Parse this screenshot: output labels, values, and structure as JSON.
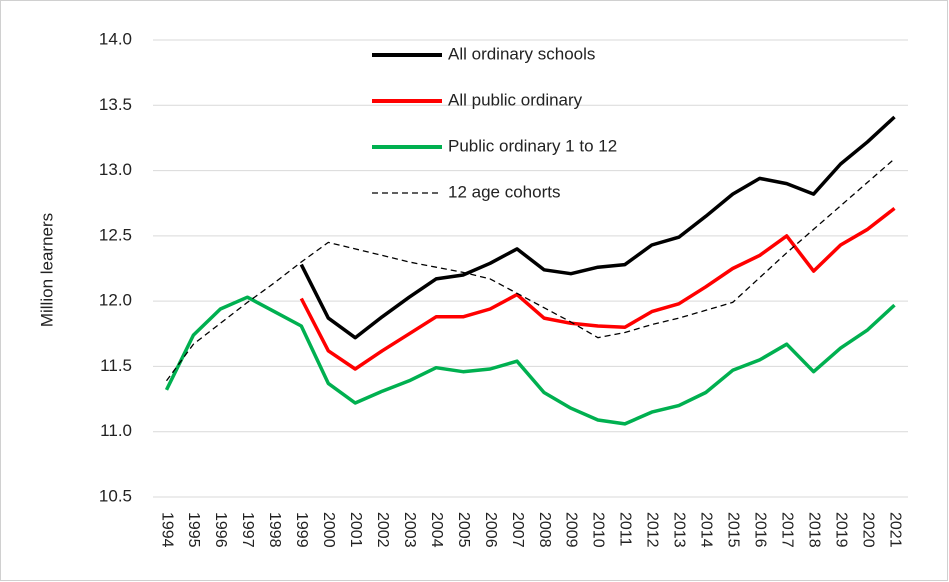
{
  "chart_data": {
    "type": "line",
    "y_label": "Million learners",
    "categories": [
      "1994",
      "1995",
      "1996",
      "1997",
      "1998",
      "1999",
      "2000",
      "2001",
      "2002",
      "2003",
      "2004",
      "2005",
      "2006",
      "2007",
      "2008",
      "2009",
      "2010",
      "2011",
      "2012",
      "2013",
      "2014",
      "2015",
      "2016",
      "2017",
      "2018",
      "2019",
      "2020",
      "2021"
    ],
    "series": [
      {
        "name": "All ordinary schools",
        "color": "#000000",
        "values": [
          null,
          null,
          null,
          null,
          null,
          12.28,
          11.87,
          11.72,
          11.88,
          12.03,
          12.17,
          12.2,
          12.29,
          12.4,
          12.24,
          12.21,
          12.26,
          12.28,
          12.43,
          12.49,
          12.65,
          12.82,
          12.94,
          12.9,
          12.82,
          13.05,
          13.22,
          13.41
        ]
      },
      {
        "name": "All public ordinary",
        "color": "#ff0000",
        "values": [
          null,
          null,
          null,
          null,
          null,
          12.02,
          11.62,
          11.48,
          11.62,
          11.75,
          11.88,
          11.88,
          11.94,
          12.05,
          11.87,
          11.83,
          11.81,
          11.8,
          11.92,
          11.98,
          12.11,
          12.25,
          12.35,
          12.5,
          12.23,
          12.43,
          12.55,
          12.71
        ]
      },
      {
        "name": "Public ordinary 1 to 12",
        "color": "#00b050",
        "values": [
          11.32,
          11.74,
          11.94,
          12.03,
          11.92,
          11.81,
          11.37,
          11.22,
          11.31,
          11.39,
          11.49,
          11.46,
          11.48,
          11.54,
          11.3,
          11.18,
          11.09,
          11.06,
          11.15,
          11.2,
          11.3,
          11.47,
          11.55,
          11.67,
          11.46,
          11.64,
          11.78,
          11.97
        ]
      },
      {
        "name": "12 age cohorts",
        "color": "#000000",
        "dashed": true,
        "values": [
          11.39,
          11.67,
          11.83,
          11.99,
          12.14,
          12.3,
          12.45,
          12.4,
          12.35,
          12.3,
          12.26,
          12.22,
          12.17,
          12.06,
          11.95,
          11.84,
          11.72,
          11.76,
          11.82,
          11.87,
          11.93,
          11.99,
          12.18,
          12.37,
          12.55,
          12.73,
          12.91,
          13.09
        ]
      }
    ],
    "ylim": [
      10.5,
      14.0
    ],
    "yticks": [
      {
        "value": 10.5,
        "label": "10.5"
      },
      {
        "value": 11,
        "label": "11.0"
      },
      {
        "value": 11.5,
        "label": "11.5"
      },
      {
        "value": 12,
        "label": "12.0"
      },
      {
        "value": 12.5,
        "label": "12.5"
      },
      {
        "value": 13,
        "label": "13.0"
      },
      {
        "value": 13.5,
        "label": "13.5"
      },
      {
        "value": 14,
        "label": "14.0"
      }
    ],
    "grid": true,
    "legend": "top"
  }
}
